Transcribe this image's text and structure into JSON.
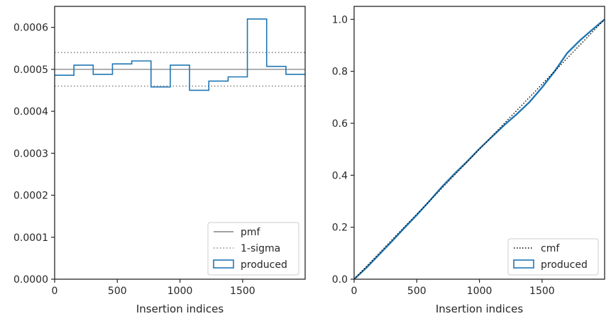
{
  "chart_data": [
    {
      "type": "histogram",
      "xlabel": "Insertion indices",
      "ylabel": "",
      "xlim": [
        0,
        1999
      ],
      "ylim": [
        0,
        0.00065
      ],
      "x_ticks": [
        0,
        500,
        1000,
        1500
      ],
      "y_ticks": [
        0,
        0.0001,
        0.0002,
        0.0003,
        0.0004,
        0.0005,
        0.0006
      ],
      "y_tick_labels": [
        "0.0000",
        "0.0001",
        "0.0002",
        "0.0003",
        "0.0004",
        "0.0005",
        "0.0006"
      ],
      "bin_edges": [
        0,
        153.8,
        307.6,
        461.4,
        615.2,
        769,
        922.8,
        1076.6,
        1230.4,
        1384.2,
        1538,
        1691.8,
        1845.6,
        1999
      ],
      "produced_values": [
        0.000486,
        0.00051,
        0.000488,
        0.000513,
        0.00052,
        0.000458,
        0.00051,
        0.00045,
        0.000472,
        0.000482,
        0.00062,
        0.000507,
        0.000488
      ],
      "pmf": 0.0005,
      "sigma_band": [
        0.00046,
        0.00054
      ],
      "grid": false,
      "legend": {
        "placement": "bottom-right",
        "entries": [
          {
            "label": "pmf",
            "style": "solid",
            "color": "#808080"
          },
          {
            "label": "1-sigma",
            "style": "dotted",
            "color": "#808080"
          },
          {
            "label": "produced",
            "style": "box",
            "color": "#1f77b4"
          }
        ]
      }
    },
    {
      "type": "line",
      "xlabel": "Insertion indices",
      "ylabel": "",
      "xlim": [
        0,
        1999
      ],
      "ylim": [
        0,
        1.05
      ],
      "x_ticks": [
        0,
        500,
        1000,
        1500
      ],
      "y_ticks": [
        0,
        0.2,
        0.4,
        0.6,
        0.8,
        1.0
      ],
      "y_tick_labels": [
        "0.0",
        "0.2",
        "0.4",
        "0.6",
        "0.8",
        "1.0"
      ],
      "cmf": {
        "x": [
          0,
          1999
        ],
        "y": [
          0,
          1.0
        ]
      },
      "produced": {
        "x": [
          0,
          100,
          200,
          300,
          400,
          500,
          600,
          700,
          800,
          900,
          1000,
          1100,
          1200,
          1300,
          1400,
          1500,
          1600,
          1700,
          1800,
          1900,
          1999
        ],
        "y": [
          0.0,
          0.045,
          0.095,
          0.145,
          0.197,
          0.247,
          0.3,
          0.355,
          0.405,
          0.452,
          0.502,
          0.548,
          0.594,
          0.636,
          0.682,
          0.738,
          0.8,
          0.87,
          0.918,
          0.96,
          1.0
        ]
      },
      "grid": false,
      "legend": {
        "placement": "bottom-right",
        "entries": [
          {
            "label": "cmf",
            "style": "dotted",
            "color": "#000000"
          },
          {
            "label": "produced",
            "style": "box",
            "color": "#1f77b4"
          }
        ]
      }
    }
  ]
}
